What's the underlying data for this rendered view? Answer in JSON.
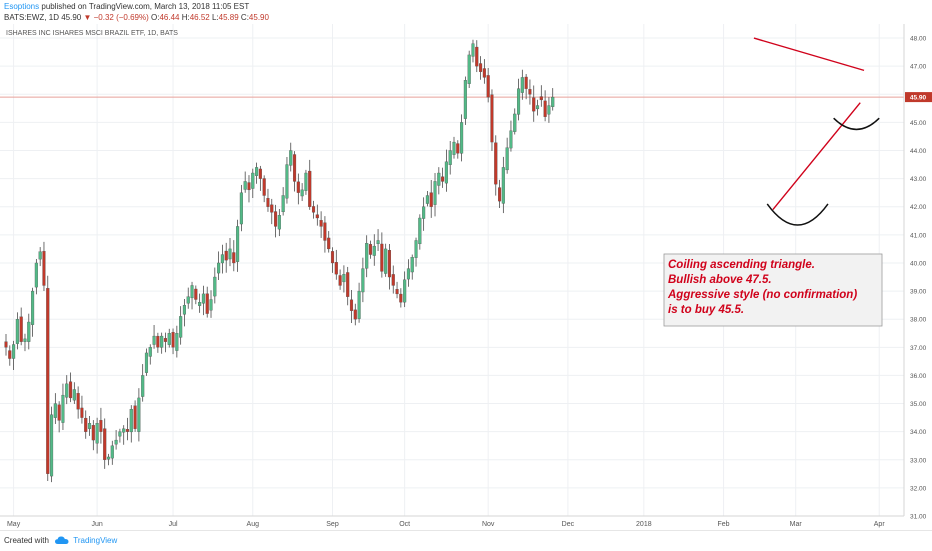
{
  "header": {
    "author": "Esoptions",
    "published": "published on TradingView.com, March 13, 2018 11:05 EST",
    "symbol": "BATS:EWZ, 1D",
    "last": "45.90",
    "change": "▼ −0.32 (−0.69%)",
    "ohlc": [
      {
        "key": "O:",
        "value": "46.44"
      },
      {
        "key": "H:",
        "value": "46.52"
      },
      {
        "key": "L:",
        "value": "45.89"
      },
      {
        "key": "C:",
        "value": "45.90"
      }
    ]
  },
  "footer": {
    "created_with": "Created with",
    "brand": "TradingView"
  },
  "chart_data": {
    "type": "candlestick",
    "title": "ISHARES INC ISHARES MSCI BRAZIL ETF, 1D, BATS",
    "ylim": [
      31,
      48.5
    ],
    "y_ticks": [
      "31.00",
      "32.00",
      "33.00",
      "34.00",
      "35.00",
      "36.00",
      "37.00",
      "38.00",
      "39.00",
      "40.00",
      "41.00",
      "42.00",
      "43.00",
      "44.00",
      "45.00",
      "46.00",
      "47.00",
      "48.00"
    ],
    "x_ticks": [
      {
        "label": "May",
        "index": 2
      },
      {
        "label": "Jun",
        "index": 24
      },
      {
        "label": "Jul",
        "index": 44
      },
      {
        "label": "Aug",
        "index": 65
      },
      {
        "label": "Sep",
        "index": 86
      },
      {
        "label": "Oct",
        "index": 105
      },
      {
        "label": "Nov",
        "index": 127
      },
      {
        "label": "Dec",
        "index": 148
      },
      {
        "label": "2018",
        "index": 168
      },
      {
        "label": "Feb",
        "index": 189
      },
      {
        "label": "Mar",
        "index": 208
      },
      {
        "label": "Apr",
        "index": 230
      }
    ],
    "last_price": 45.9,
    "price_line_color": "#e8a09a",
    "up_color": "#53b987",
    "down_color": "#c0392b",
    "closes": [
      37.0,
      36.6,
      37.1,
      38.0,
      37.2,
      37.3,
      37.9,
      39.0,
      40.0,
      40.4,
      39.2,
      32.5,
      34.6,
      35.0,
      34.4,
      35.3,
      35.7,
      35.2,
      35.5,
      34.8,
      34.5,
      34.0,
      34.3,
      33.7,
      34.3,
      34.0,
      33.0,
      33.1,
      33.5,
      33.7,
      34.0,
      34.1,
      34.0,
      34.8,
      34.1,
      35.2,
      36.0,
      36.8,
      37.0,
      37.4,
      37.0,
      37.4,
      37.2,
      37.5,
      37.0,
      37.5,
      38.1,
      38.5,
      38.8,
      39.2,
      38.7,
      38.6,
      38.9,
      38.2,
      38.7,
      39.5,
      40.0,
      40.3,
      40.1,
      40.5,
      40.0,
      41.3,
      42.5,
      42.9,
      42.6,
      43.2,
      43.4,
      43.0,
      42.4,
      42.0,
      41.8,
      41.3,
      41.7,
      42.4,
      43.5,
      44.0,
      42.9,
      42.5,
      42.6,
      43.2,
      42.0,
      41.8,
      41.6,
      41.3,
      40.8,
      40.5,
      40.0,
      39.6,
      39.2,
      39.6,
      38.8,
      38.3,
      38.0,
      39.0,
      39.8,
      40.7,
      40.3,
      40.6,
      40.8,
      39.7,
      40.5,
      39.5,
      39.2,
      38.9,
      38.6,
      39.4,
      39.8,
      40.2,
      40.8,
      41.6,
      42.0,
      42.4,
      42.0,
      42.9,
      43.2,
      42.9,
      43.6,
      44.0,
      44.3,
      43.9,
      45.0,
      46.5,
      47.4,
      47.8,
      47.0,
      46.8,
      46.6,
      45.9,
      44.3,
      42.8,
      42.2,
      43.4,
      44.1,
      44.7,
      45.3,
      46.2,
      46.6,
      46.2,
      46.0,
      45.4,
      45.6,
      45.8,
      45.2,
      45.6,
      45.9
    ],
    "trendlines": [
      {
        "color": "#d0021b",
        "from": {
          "index": 197,
          "price": 48.0
        },
        "to": {
          "index": 226,
          "price": 46.85
        }
      },
      {
        "color": "#d0021b",
        "from": {
          "index": 202,
          "price": 41.9
        },
        "to": {
          "index": 225,
          "price": 45.7
        }
      }
    ],
    "arcs": [
      {
        "color": "#111111",
        "cx": 208.5,
        "cy": 42.1,
        "rx": 8,
        "ry": 0.75
      },
      {
        "color": "#111111",
        "cx": 224.0,
        "cy": 45.15,
        "rx": 6,
        "ry": 0.4
      }
    ],
    "annotation": {
      "lines": [
        "Coiling ascending triangle.",
        "Bullish above 47.5.",
        "Aggressive style (no confirmation)",
        "is to buy 45.5."
      ]
    },
    "grid": true
  }
}
